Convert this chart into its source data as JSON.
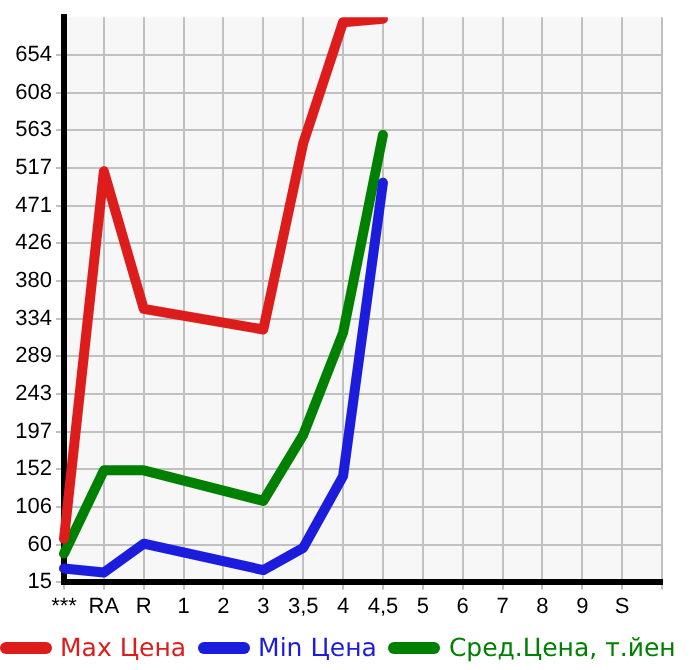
{
  "chart_data": {
    "type": "line",
    "categories": [
      "***",
      "RA",
      "R",
      "1",
      "2",
      "3",
      "3,5",
      "4",
      "4,5",
      "5",
      "6",
      "7",
      "8",
      "9",
      "S",
      null
    ],
    "series": [
      {
        "name": "Max Цена",
        "color": "#dd1c1c",
        "values": [
          67,
          513,
          346,
          null,
          null,
          321,
          547,
          694,
          698,
          null,
          null,
          null,
          null,
          null,
          null,
          null
        ]
      },
      {
        "name": "Min Цена",
        "color": "#1c1cdd",
        "values": [
          31,
          26,
          61,
          null,
          null,
          29,
          56,
          143,
          499,
          null,
          null,
          null,
          null,
          null,
          null,
          null
        ]
      },
      {
        "name": "Сред.Цена, т.йен",
        "color": "#008000",
        "values": [
          49,
          150,
          150,
          null,
          null,
          113,
          193,
          317,
          557,
          null,
          null,
          null,
          null,
          null,
          null,
          null
        ]
      }
    ],
    "ylim": [
      15,
      700
    ],
    "yticks": [
      15,
      60,
      106,
      152,
      197,
      243,
      289,
      334,
      380,
      426,
      471,
      517,
      563,
      608,
      654
    ],
    "grid": true,
    "legend": "bottom",
    "marker": "none",
    "line_style": "solid"
  }
}
